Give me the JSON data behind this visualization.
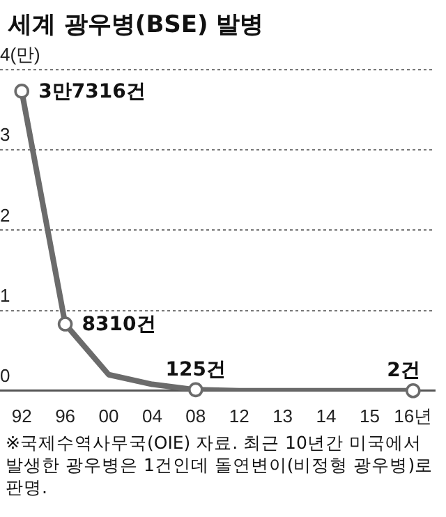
{
  "chart_data": {
    "type": "line",
    "title": "세계 광우병(BSE) 발병",
    "categories": [
      "92",
      "96",
      "00",
      "04",
      "08",
      "12",
      "13",
      "14",
      "15",
      "16년"
    ],
    "series": [
      {
        "color": "#6b6b6b",
        "values": [
          3.7316,
          0.831,
          0.2,
          0.08,
          0.0125,
          0,
          0,
          0,
          0,
          0.0002
        ]
      }
    ],
    "ylim": [
      0,
      4
    ],
    "yticks": [
      0,
      1,
      2,
      3,
      {
        "value": 4,
        "label": "4(만)"
      }
    ],
    "grid": "y",
    "line_style": "solid",
    "annotations": [
      {
        "text": "3만7316건",
        "x": "92",
        "y": 3.7316
      },
      {
        "text": "8310건",
        "x": "96",
        "y": 0.831
      },
      {
        "text": "125건",
        "x": "08",
        "y": 0.0125
      },
      {
        "text": "2건",
        "x": "16년",
        "y": 0.0002
      },
      "※국제수역사무국(OIE) 자료. 최근 10년간 미국에서 발생한 광우병은 1건인데 돌연변이(비정형 광우병)로 판명."
    ]
  }
}
